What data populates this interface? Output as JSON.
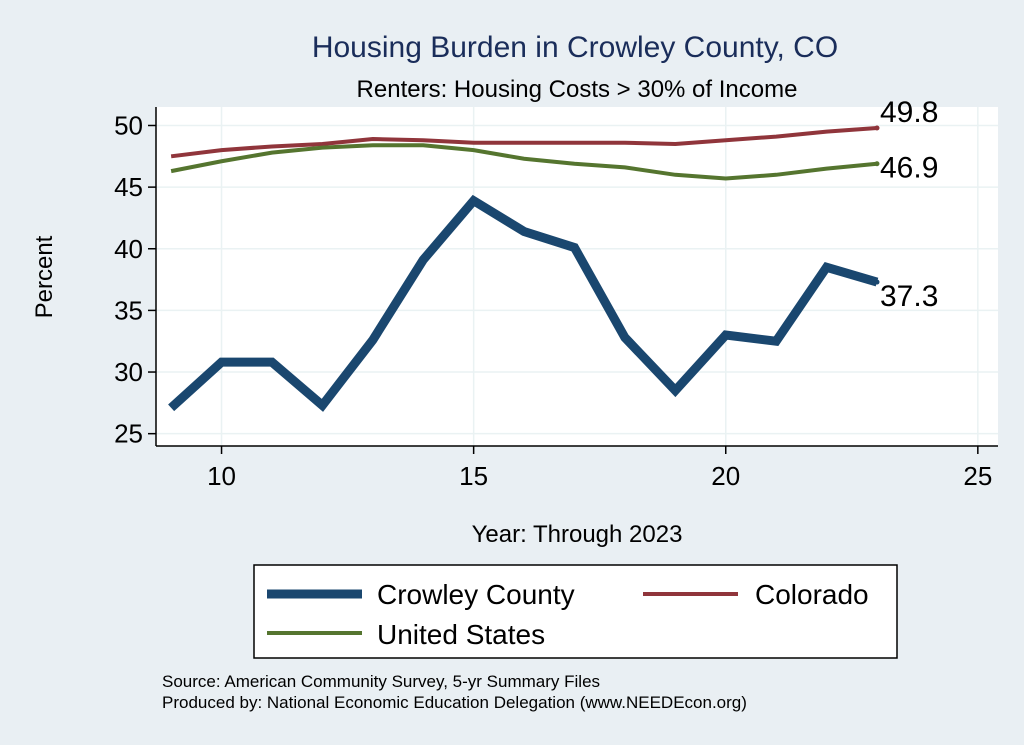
{
  "chart_data": {
    "type": "line",
    "title": "Housing Burden in Crowley County, CO",
    "subtitle": "Renters: Housing Costs > 30% of Income",
    "xlabel": "Year: Through 2023",
    "ylabel": "Percent",
    "xlim": [
      8.7,
      25.4
    ],
    "ylim": [
      24,
      51.5
    ],
    "xticks": [
      "10",
      "15",
      "20",
      "25"
    ],
    "yticks": [
      "25",
      "30",
      "35",
      "40",
      "45",
      "50"
    ],
    "x": [
      9,
      10,
      11,
      12,
      13,
      14,
      15,
      16,
      17,
      18,
      19,
      20,
      21,
      22,
      23
    ],
    "series": [
      {
        "name": "Crowley County",
        "color": "#1a476f",
        "values": [
          27.1,
          30.8,
          30.8,
          27.3,
          32.6,
          39.1,
          43.9,
          41.4,
          40.1,
          32.8,
          28.5,
          33.0,
          32.5,
          38.5,
          37.3
        ],
        "end_label": "37.3"
      },
      {
        "name": "Colorado",
        "color": "#90353b",
        "values": [
          47.5,
          48.0,
          48.3,
          48.5,
          48.9,
          48.8,
          48.6,
          48.6,
          48.6,
          48.6,
          48.5,
          48.8,
          49.1,
          49.5,
          49.8
        ],
        "end_label": "49.8"
      },
      {
        "name": "United States",
        "color": "#55752f",
        "values": [
          46.3,
          47.1,
          47.8,
          48.2,
          48.4,
          48.4,
          48.0,
          47.3,
          46.9,
          46.6,
          46.0,
          45.7,
          46.0,
          46.5,
          46.9
        ],
        "end_label": "46.9"
      }
    ],
    "legend": [
      "Crowley County",
      "Colorado",
      "United States"
    ],
    "legend_position": "bottom",
    "grid": true
  },
  "notes": {
    "source": "Source: American Community Survey, 5-yr Summary Files",
    "produced_by": "Produced by: National Economic Education Delegation (www.NEEDEcon.org)"
  },
  "colors": {
    "background": "#e9eff3",
    "plot_area": "#ffffff",
    "title": "#1a2d5a",
    "grid": "#eaf2f3"
  }
}
